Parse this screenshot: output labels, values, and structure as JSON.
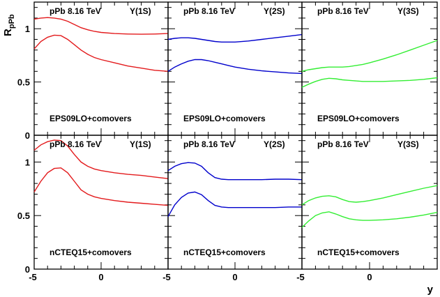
{
  "chart_data": {
    "type": "line",
    "ylabel": "R",
    "ylabel_sub": "pPb",
    "xlabel": "y",
    "xlim": [
      -5,
      5
    ],
    "ylim": [
      0,
      1.25
    ],
    "x_ticks": [
      -5,
      0
    ],
    "y_ticks": [
      0,
      0.5,
      1
    ],
    "y_tick_labels": [
      "0",
      "0.5",
      "1"
    ],
    "x_tick_labels": [
      "-5",
      "0"
    ],
    "panels": [
      {
        "row": 0,
        "col": 0,
        "system": "pPb 8.16 TeV",
        "state": "Υ(1S)",
        "model": "EPS09LO+comovers",
        "color": "#e31a1c",
        "x": [
          -5,
          -4.5,
          -4,
          -3.5,
          -3,
          -2.5,
          -2,
          -1.5,
          -1,
          -0.5,
          0,
          1,
          2,
          3,
          4,
          5
        ],
        "series": [
          {
            "values": [
              1.09,
              1.1,
              1.105,
              1.1,
              1.09,
              1.07,
              1.04,
              1.01,
              0.99,
              0.975,
              0.965,
              0.955,
              0.95,
              0.948,
              0.95,
              0.955
            ]
          },
          {
            "values": [
              0.81,
              0.88,
              0.92,
              0.94,
              0.935,
              0.9,
              0.85,
              0.8,
              0.76,
              0.73,
              0.71,
              0.68,
              0.65,
              0.63,
              0.61,
              0.6
            ]
          }
        ]
      },
      {
        "row": 0,
        "col": 1,
        "system": "pPb 8.16 TeV",
        "state": "Υ(2S)",
        "model": "EPS09LO+comovers",
        "color": "#0000cc",
        "x": [
          -5,
          -4.5,
          -4,
          -3.5,
          -3,
          -2.5,
          -2,
          -1.5,
          -1,
          -0.5,
          0,
          1,
          2,
          3,
          4,
          5
        ],
        "series": [
          {
            "values": [
              0.9,
              0.91,
              0.915,
              0.915,
              0.91,
              0.9,
              0.89,
              0.88,
              0.875,
              0.875,
              0.875,
              0.885,
              0.9,
              0.915,
              0.93,
              0.945
            ]
          },
          {
            "values": [
              0.6,
              0.64,
              0.67,
              0.695,
              0.71,
              0.71,
              0.7,
              0.685,
              0.67,
              0.655,
              0.64,
              0.62,
              0.605,
              0.595,
              0.585,
              0.58
            ]
          }
        ]
      },
      {
        "row": 0,
        "col": 2,
        "system": "pPb 8.16 TeV",
        "state": "Υ(3S)",
        "model": "EPS09LO+comovers",
        "color": "#33ee33",
        "x": [
          -5,
          -4.5,
          -4,
          -3.5,
          -3,
          -2.5,
          -2,
          -1.5,
          -1,
          -0.5,
          0,
          1,
          2,
          3,
          4,
          5
        ],
        "series": [
          {
            "values": [
              0.6,
              0.615,
              0.625,
              0.635,
              0.64,
              0.64,
              0.64,
              0.645,
              0.655,
              0.665,
              0.68,
              0.715,
              0.755,
              0.8,
              0.845,
              0.89
            ]
          },
          {
            "values": [
              0.45,
              0.48,
              0.505,
              0.525,
              0.535,
              0.53,
              0.52,
              0.515,
              0.51,
              0.505,
              0.505,
              0.505,
              0.51,
              0.515,
              0.525,
              0.54
            ]
          }
        ]
      },
      {
        "row": 1,
        "col": 0,
        "system": "pPb 8.16 TeV",
        "state": "Υ(1S)",
        "model": "nCTEQ15+comovers",
        "color": "#e31a1c",
        "x": [
          -5,
          -4.5,
          -4,
          -3.5,
          -3,
          -2.5,
          -2,
          -1.5,
          -1,
          -0.5,
          0,
          1,
          2,
          3,
          4,
          5
        ],
        "series": [
          {
            "values": [
              1.11,
              1.16,
              1.19,
              1.205,
              1.2,
              1.15,
              1.07,
              1.0,
              0.96,
              0.935,
              0.92,
              0.9,
              0.885,
              0.875,
              0.86,
              0.845
            ]
          },
          {
            "values": [
              0.72,
              0.82,
              0.9,
              0.94,
              0.945,
              0.9,
              0.82,
              0.74,
              0.7,
              0.675,
              0.66,
              0.64,
              0.625,
              0.615,
              0.605,
              0.595
            ]
          }
        ]
      },
      {
        "row": 1,
        "col": 1,
        "system": "pPb 8.16 TeV",
        "state": "Υ(2S)",
        "model": "nCTEQ15+comovers",
        "color": "#0000cc",
        "x": [
          -5,
          -4.5,
          -4,
          -3.5,
          -3,
          -2.5,
          -2,
          -1.5,
          -1,
          -0.5,
          0,
          1,
          2,
          3,
          4,
          5
        ],
        "series": [
          {
            "values": [
              0.92,
              0.96,
              0.985,
              0.995,
              0.99,
              0.96,
              0.9,
              0.855,
              0.84,
              0.835,
              0.835,
              0.835,
              0.835,
              0.84,
              0.84,
              0.835
            ]
          },
          {
            "values": [
              0.49,
              0.6,
              0.67,
              0.71,
              0.72,
              0.695,
              0.64,
              0.595,
              0.58,
              0.575,
              0.575,
              0.575,
              0.575,
              0.575,
              0.58,
              0.58
            ]
          }
        ]
      },
      {
        "row": 1,
        "col": 2,
        "system": "pPb 8.16 TeV",
        "state": "Υ(3S)",
        "model": "nCTEQ15+comovers",
        "color": "#33ee33",
        "x": [
          -5,
          -4.5,
          -4,
          -3.5,
          -3,
          -2.5,
          -2,
          -1.5,
          -1,
          -0.5,
          0,
          1,
          2,
          3,
          4,
          5
        ],
        "series": [
          {
            "values": [
              0.6,
              0.64,
              0.665,
              0.68,
              0.685,
              0.675,
              0.65,
              0.63,
              0.625,
              0.63,
              0.64,
              0.665,
              0.695,
              0.725,
              0.755,
              0.78
            ]
          },
          {
            "values": [
              0.39,
              0.45,
              0.5,
              0.525,
              0.535,
              0.515,
              0.49,
              0.47,
              0.46,
              0.455,
              0.455,
              0.46,
              0.47,
              0.485,
              0.505,
              0.53
            ]
          }
        ]
      }
    ]
  }
}
